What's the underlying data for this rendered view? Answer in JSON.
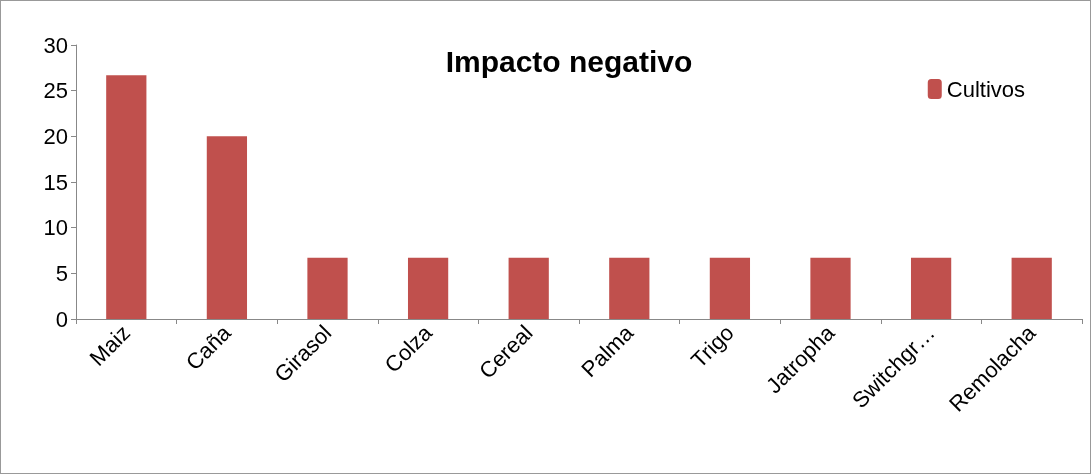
{
  "chart_data": {
    "type": "bar",
    "title": "Impacto negativo",
    "categories": [
      "Maiz",
      "Caña",
      "Girasol",
      "Colza",
      "Cereal",
      "Palma",
      "Trigo",
      "Jatropha",
      "Switchgr…",
      "Remolacha"
    ],
    "series": [
      {
        "name": "Cultivos",
        "color": "#c0504d",
        "values": [
          26.7,
          20,
          6.7,
          6.7,
          6.7,
          6.7,
          6.7,
          6.7,
          6.7,
          6.7
        ]
      }
    ],
    "ylim": [
      0,
      30
    ],
    "yticks": [
      0,
      5,
      10,
      15,
      20,
      25,
      30
    ],
    "grid": false,
    "legend": "top right"
  }
}
